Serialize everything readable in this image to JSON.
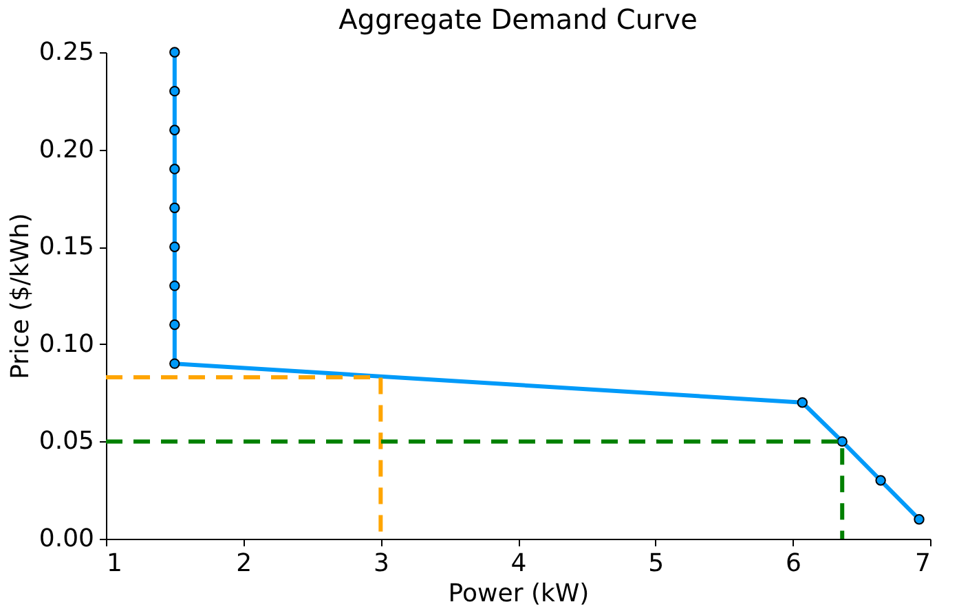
{
  "chart_data": {
    "type": "line",
    "title": "Aggregate Demand Curve",
    "xlabel": "Power (kW)",
    "ylabel": "Price ($/kWh)",
    "xlim": [
      1,
      7
    ],
    "ylim": [
      0,
      0.25
    ],
    "xticks": [
      1,
      2,
      3,
      4,
      5,
      6,
      7
    ],
    "yticks": [
      {
        "value": 0,
        "label": "0.00"
      },
      0.05,
      {
        "value": 0.1,
        "label": "0.10"
      },
      0.15,
      {
        "value": 0.2,
        "label": "0.20"
      },
      0.25
    ],
    "grid": false,
    "series": [
      {
        "color": "#009af9",
        "marker": "circle",
        "line_style": "solid",
        "x": [
          1.5,
          1.5,
          1.5,
          1.5,
          1.5,
          1.5,
          1.5,
          1.5,
          1.5,
          6.07,
          6.36,
          6.64,
          6.92
        ],
        "values": [
          0.25,
          0.23,
          0.21,
          0.19,
          0.17,
          0.15,
          0.13,
          0.11,
          0.09,
          0.07,
          0.05,
          0.03,
          0.01
        ]
      },
      {
        "color": "#ffa500",
        "marker": "none",
        "line_style": "dashed",
        "x": [
          1,
          3,
          3
        ],
        "values": [
          0.083,
          0.083,
          0
        ]
      },
      {
        "color": "#008000",
        "marker": "none",
        "line_style": "dashed",
        "x": [
          1,
          6.36,
          6.36
        ],
        "values": [
          0.05,
          0.05,
          0
        ]
      }
    ]
  }
}
